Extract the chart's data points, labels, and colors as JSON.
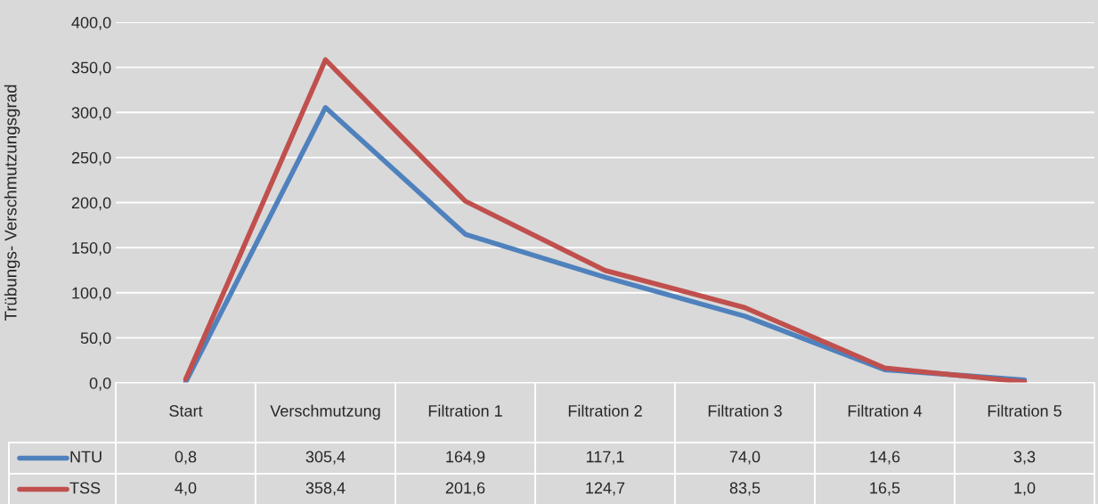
{
  "chart_data": {
    "type": "line",
    "ylabel": "Trübungs- Verschmutzungsgrad",
    "categories": [
      "Start",
      "Verschmutzung",
      "Filtration 1",
      "Filtration 2",
      "Filtration 3",
      "Filtration 4",
      "Filtration 5"
    ],
    "series": [
      {
        "name": "NTU",
        "color": "#4f81bd",
        "values": [
          0.8,
          305.4,
          164.9,
          117.1,
          74.0,
          14.6,
          3.3
        ],
        "value_labels": [
          "0,8",
          "305,4",
          "164,9",
          "117,1",
          "74,0",
          "14,6",
          "3,3"
        ]
      },
      {
        "name": "TSS",
        "color": "#c0504d",
        "values": [
          4.0,
          358.4,
          201.6,
          124.7,
          83.5,
          16.5,
          1.0
        ],
        "value_labels": [
          "4,0",
          "358,4",
          "201,6",
          "124,7",
          "83,5",
          "16,5",
          "1,0"
        ]
      }
    ],
    "ylim": [
      0,
      400
    ],
    "yticks": [
      {
        "value": 0,
        "label": "0,0"
      },
      {
        "value": 50,
        "label": "50,0"
      },
      {
        "value": 100,
        "label": "100,0"
      },
      {
        "value": 150,
        "label": "150,0"
      },
      {
        "value": 200,
        "label": "200,0"
      },
      {
        "value": 250,
        "label": "250,0"
      },
      {
        "value": 300,
        "label": "300,0"
      },
      {
        "value": 350,
        "label": "350,0"
      },
      {
        "value": 400,
        "label": "400,0"
      }
    ],
    "grid": "y",
    "legend": "bottom",
    "marker": "none",
    "line_style": "solid"
  }
}
